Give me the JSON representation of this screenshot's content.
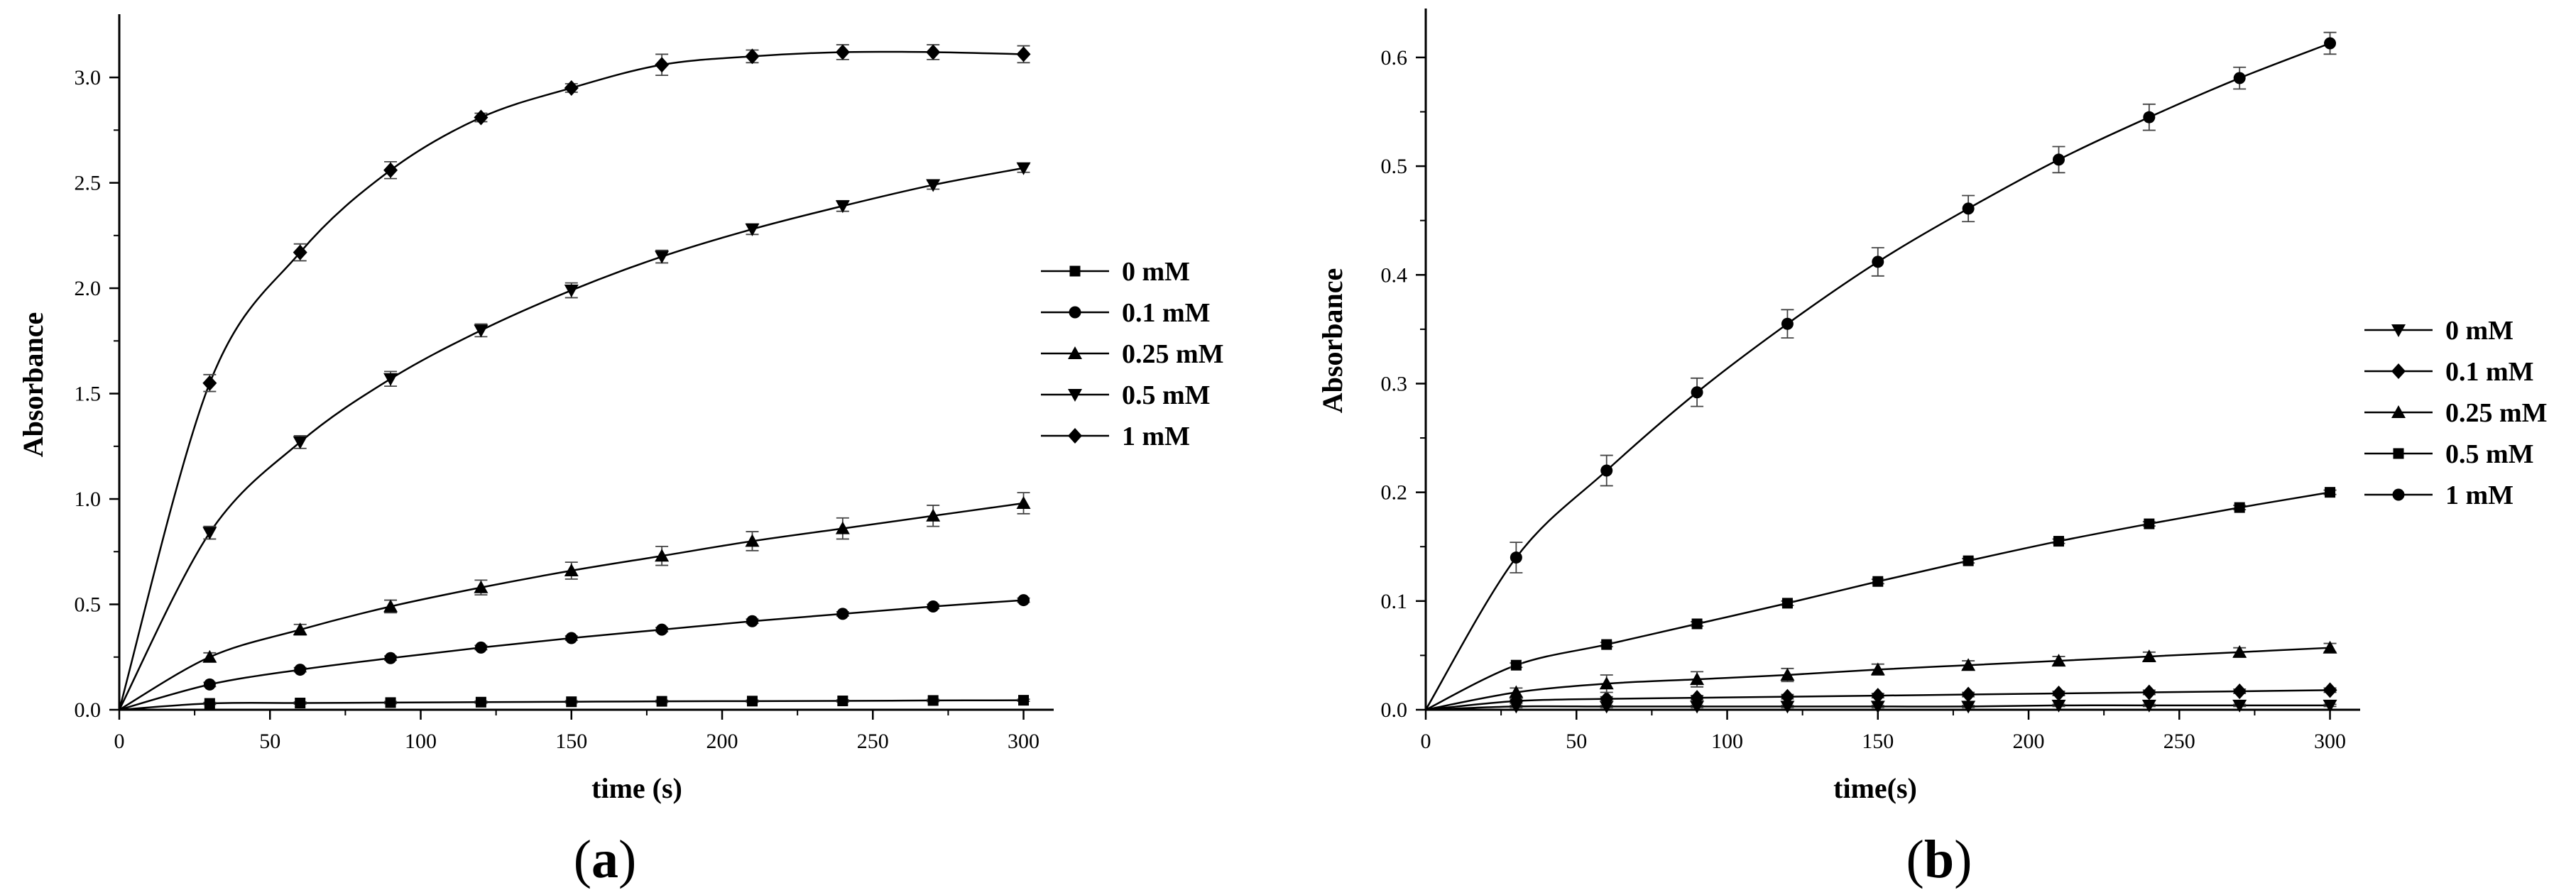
{
  "chart_data": [
    {
      "type": "line",
      "panel_label": "a",
      "xlabel": "time (s)",
      "ylabel": "Absorbance",
      "xlim": [
        0,
        310
      ],
      "ylim": [
        0,
        3.3
      ],
      "xticks": [
        0,
        50,
        100,
        150,
        200,
        250,
        300
      ],
      "yticks": [
        "0.0",
        "0.5",
        "1.0",
        "1.5",
        "2.0",
        "2.5",
        "3.0"
      ],
      "grid": false,
      "legend_position": "right",
      "x": [
        0,
        30,
        60,
        90,
        120,
        150,
        180,
        210,
        240,
        270,
        300
      ],
      "series": [
        {
          "name": "0 mM",
          "marker": "square",
          "values": [
            0,
            0.03,
            0.032,
            0.034,
            0.036,
            0.038,
            0.04,
            0.041,
            0.042,
            0.044,
            0.045
          ],
          "errors": [
            0,
            0.005,
            0.005,
            0.005,
            0.005,
            0.005,
            0.005,
            0.005,
            0.005,
            0.005,
            0.005
          ]
        },
        {
          "name": "0.1 mM",
          "marker": "circle",
          "values": [
            0,
            0.12,
            0.19,
            0.245,
            0.295,
            0.34,
            0.38,
            0.42,
            0.455,
            0.49,
            0.52
          ],
          "errors": [
            0,
            0.01,
            0.01,
            0.01,
            0.01,
            0.01,
            0.01,
            0.01,
            0.01,
            0.01,
            0.01
          ]
        },
        {
          "name": "0.25 mM",
          "marker": "triangle-up",
          "values": [
            0,
            0.25,
            0.38,
            0.49,
            0.58,
            0.66,
            0.73,
            0.8,
            0.86,
            0.92,
            0.98
          ],
          "errors": [
            0,
            0.02,
            0.025,
            0.03,
            0.035,
            0.04,
            0.045,
            0.045,
            0.05,
            0.05,
            0.05
          ]
        },
        {
          "name": "0.5 mM",
          "marker": "triangle-down",
          "values": [
            0,
            0.84,
            1.27,
            1.57,
            1.8,
            1.99,
            2.15,
            2.28,
            2.39,
            2.49,
            2.57
          ],
          "errors": [
            0,
            0.03,
            0.03,
            0.035,
            0.03,
            0.035,
            0.03,
            0.025,
            0.025,
            0.02,
            0.02
          ]
        },
        {
          "name": "1 mM",
          "marker": "diamond",
          "values": [
            0,
            1.55,
            2.17,
            2.56,
            2.81,
            2.95,
            3.06,
            3.1,
            3.12,
            3.12,
            3.11
          ],
          "errors": [
            0,
            0.04,
            0.04,
            0.04,
            0.02,
            0.02,
            0.05,
            0.03,
            0.035,
            0.035,
            0.04
          ]
        }
      ]
    },
    {
      "type": "line",
      "panel_label": "b",
      "xlabel": "time(s)",
      "ylabel": "Absorbance",
      "xlim": [
        0,
        310
      ],
      "ylim": [
        0,
        0.645
      ],
      "xticks": [
        0,
        50,
        100,
        150,
        200,
        250,
        300
      ],
      "yticks": [
        "0.0",
        "0.1",
        "0.2",
        "0.3",
        "0.4",
        "0.5",
        "0.6"
      ],
      "grid": false,
      "legend_position": "right",
      "x": [
        0,
        30,
        60,
        90,
        120,
        150,
        180,
        210,
        240,
        270,
        300
      ],
      "series": [
        {
          "name": "0 mM",
          "marker": "triangle-down",
          "values": [
            0,
            0.003,
            0.003,
            0.003,
            0.003,
            0.003,
            0.003,
            0.004,
            0.004,
            0.004,
            0.004
          ],
          "errors": [
            0,
            0.001,
            0.001,
            0.001,
            0.001,
            0.001,
            0.001,
            0.001,
            0.001,
            0.001,
            0.001
          ]
        },
        {
          "name": "0.1 mM",
          "marker": "diamond",
          "values": [
            0,
            0.008,
            0.01,
            0.011,
            0.012,
            0.013,
            0.014,
            0.015,
            0.016,
            0.017,
            0.018
          ],
          "errors": [
            0,
            0.002,
            0.002,
            0.002,
            0.002,
            0.002,
            0.002,
            0.002,
            0.002,
            0.002,
            0.002
          ]
        },
        {
          "name": "0.25 mM",
          "marker": "triangle-up",
          "values": [
            0,
            0.016,
            0.024,
            0.028,
            0.032,
            0.037,
            0.041,
            0.045,
            0.049,
            0.053,
            0.057
          ],
          "errors": [
            0,
            0.004,
            0.008,
            0.007,
            0.006,
            0.005,
            0.004,
            0.004,
            0.004,
            0.004,
            0.004
          ]
        },
        {
          "name": "0.5 mM",
          "marker": "square",
          "values": [
            0,
            0.041,
            0.06,
            0.079,
            0.098,
            0.118,
            0.137,
            0.155,
            0.171,
            0.186,
            0.2
          ],
          "errors": [
            0,
            0.002,
            0.002,
            0.002,
            0.002,
            0.002,
            0.002,
            0.002,
            0.002,
            0.002,
            0.002
          ]
        },
        {
          "name": "1 mM",
          "marker": "circle",
          "values": [
            0,
            0.14,
            0.22,
            0.292,
            0.355,
            0.412,
            0.461,
            0.506,
            0.545,
            0.581,
            0.613
          ],
          "errors": [
            0,
            0.014,
            0.014,
            0.013,
            0.013,
            0.013,
            0.012,
            0.012,
            0.012,
            0.01,
            0.01
          ]
        }
      ]
    }
  ]
}
